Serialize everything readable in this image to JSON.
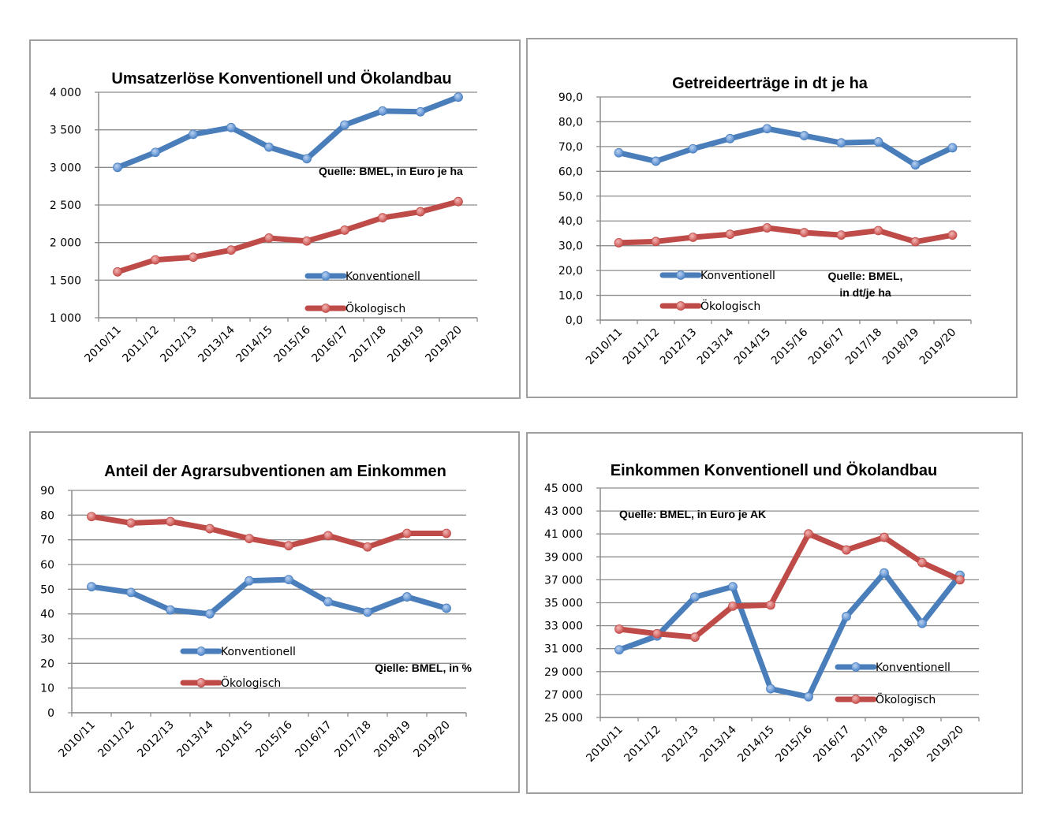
{
  "colors": {
    "konventionell": "#4a7ebb",
    "oekologisch": "#be4b48",
    "konv_marker": "#7fa7dc",
    "oeko_marker": "#e07f7c",
    "grid": "#8c8c8c"
  },
  "chart_data": [
    {
      "type": "line",
      "title": "Umsatzerlöse Konventionell und Ökolandbau",
      "note": [
        "Quelle: BMEL, in Euro je ha"
      ],
      "xlabel": "",
      "ylabel": "",
      "categories": [
        "2010/11",
        "2011/12",
        "2012/13",
        "2013/14",
        "2014/15",
        "2015/16",
        "2016/17",
        "2017/18",
        "2018/19",
        "2019/20"
      ],
      "ylim": [
        1000,
        4000
      ],
      "yticks": [
        1000,
        1500,
        2000,
        2500,
        3000,
        3500,
        4000
      ],
      "ytick_labels": [
        "1 000",
        "1 500",
        "2 000",
        "2 500",
        "3 000",
        "3 500",
        "4 000"
      ],
      "grid": true,
      "legend": "bottom-right",
      "series": [
        {
          "name": "Konventionell",
          "values": [
            3000,
            3200,
            3440,
            3530,
            3270,
            3115,
            3565,
            3750,
            3740,
            3935
          ]
        },
        {
          "name": "Ökologisch",
          "values": [
            1610,
            1770,
            1805,
            1900,
            2060,
            2020,
            2165,
            2330,
            2410,
            2545
          ]
        }
      ]
    },
    {
      "type": "line",
      "title": "Getreideerträge in dt je ha",
      "note": [
        "Quelle: BMEL,",
        "in dt/je ha"
      ],
      "xlabel": "",
      "ylabel": "",
      "categories": [
        "2010/11",
        "2011/12",
        "2012/13",
        "2013/14",
        "2014/15",
        "2015/16",
        "2016/17",
        "2017/18",
        "2018/19",
        "2019/20"
      ],
      "ylim": [
        0,
        90
      ],
      "yticks": [
        0,
        10,
        20,
        30,
        40,
        50,
        60,
        70,
        80,
        90
      ],
      "ytick_labels": [
        "0,0",
        "10,0",
        "20,0",
        "30,0",
        "40,0",
        "50,0",
        "60,0",
        "70,0",
        "80,0",
        "90,0"
      ],
      "grid": true,
      "legend": "bottom-center",
      "series": [
        {
          "name": "Konventionell",
          "values": [
            67.5,
            64.1,
            69.1,
            73.2,
            77.2,
            74.4,
            71.5,
            71.9,
            62.6,
            69.5
          ]
        },
        {
          "name": "Ökologisch",
          "values": [
            31.2,
            31.7,
            33.4,
            34.6,
            37.2,
            35.3,
            34.3,
            36.1,
            31.6,
            34.3
          ]
        }
      ]
    },
    {
      "type": "line",
      "title": "Anteil der Agrarsubventionen am Einkommen",
      "note": [
        "Qielle: BMEL, in %"
      ],
      "xlabel": "",
      "ylabel": "",
      "categories": [
        "2010/11",
        "2011/12",
        "2012/13",
        "2013/14",
        "2014/15",
        "2015/16",
        "2016/17",
        "2017/18",
        "2018/19",
        "2019/20"
      ],
      "ylim": [
        0,
        90
      ],
      "yticks": [
        0,
        10,
        20,
        30,
        40,
        50,
        60,
        70,
        80,
        90
      ],
      "ytick_labels": [
        "0",
        "10",
        "20",
        "30",
        "40",
        "50",
        "60",
        "70",
        "80",
        "90"
      ],
      "grid": true,
      "legend": "bottom-center",
      "series": [
        {
          "name": "Konventionell",
          "values": [
            51.0,
            48.7,
            41.6,
            40.0,
            53.4,
            53.9,
            44.9,
            40.7,
            46.9,
            42.3
          ]
        },
        {
          "name": "Ökologisch",
          "values": [
            79.4,
            76.8,
            77.4,
            74.5,
            70.5,
            67.6,
            71.7,
            67.1,
            72.6,
            72.6
          ]
        }
      ]
    },
    {
      "type": "line",
      "title": "Einkommen Konventionell und Ökolandbau",
      "note": [
        "Quelle: BMEL, in Euro je AK"
      ],
      "xlabel": "",
      "ylabel": "",
      "categories": [
        "2010/11",
        "2011/12",
        "2012/13",
        "2013/14",
        "2014/15",
        "2015/16",
        "2016/17",
        "2017/18",
        "2018/19",
        "2019/20"
      ],
      "ylim": [
        25000,
        45000
      ],
      "yticks": [
        25000,
        27000,
        29000,
        31000,
        33000,
        35000,
        37000,
        39000,
        41000,
        43000,
        45000
      ],
      "ytick_labels": [
        "25 000",
        "27 000",
        "29 000",
        "31 000",
        "33 000",
        "35 000",
        "37 000",
        "39 000",
        "41 000",
        "43 000",
        "45 000"
      ],
      "grid": true,
      "legend": "bottom-right",
      "series": [
        {
          "name": "Konventionell",
          "values": [
            30900,
            32100,
            35500,
            36400,
            27500,
            26800,
            33800,
            37600,
            33200,
            37400
          ]
        },
        {
          "name": "Ökologisch",
          "values": [
            32700,
            32300,
            32000,
            34700,
            34800,
            41000,
            39600,
            40700,
            38500,
            37000
          ]
        }
      ]
    }
  ]
}
